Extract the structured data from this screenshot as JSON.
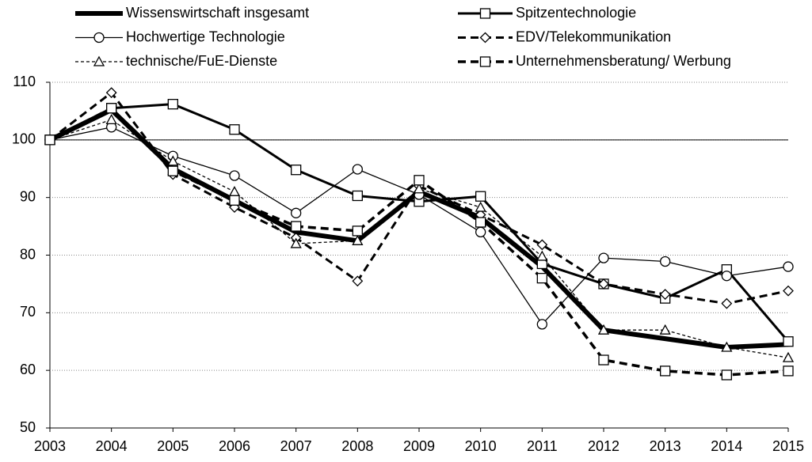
{
  "chart_data": {
    "type": "line",
    "x": [
      2003,
      2004,
      2005,
      2006,
      2007,
      2008,
      2009,
      2010,
      2011,
      2012,
      2013,
      2014,
      2015
    ],
    "xlim": [
      2003,
      2015
    ],
    "xticks": [
      2003,
      2004,
      2005,
      2006,
      2007,
      2008,
      2009,
      2010,
      2011,
      2012,
      2013,
      2014,
      2015
    ],
    "ylim": [
      50,
      110
    ],
    "yticks": [
      50,
      60,
      70,
      80,
      90,
      100,
      110
    ],
    "grid": true,
    "reference_line": 100,
    "series": [
      {
        "name": "Wissenswirtschaft insgesamt",
        "color": "#000000",
        "width": 6,
        "dash": "none",
        "marker": "none",
        "values": [
          100,
          105.2,
          95,
          89.5,
          84,
          82.5,
          91,
          86.5,
          78,
          67,
          65.5,
          64,
          64.5
        ]
      },
      {
        "name": "Spitzentechnologie",
        "color": "#000000",
        "width": 3,
        "dash": "none",
        "marker": "square",
        "values": [
          100,
          105.5,
          106.2,
          101.8,
          94.8,
          90.3,
          89.3,
          90.2,
          78.5,
          75,
          72.5,
          77.5,
          65
        ]
      },
      {
        "name": "Hochwertige Technologie",
        "color": "#000000",
        "width": 1.3,
        "dash": "none",
        "marker": "circle",
        "values": [
          100,
          102.2,
          97.2,
          93.8,
          87.3,
          94.9,
          90.5,
          84,
          68,
          79.5,
          78.9,
          76.4,
          78
        ]
      },
      {
        "name": "EDV/Telekommunikation",
        "color": "#000000",
        "width": 3,
        "dash": "10 6",
        "marker": "diamond",
        "values": [
          100,
          108.2,
          94,
          88.3,
          83,
          75.5,
          92,
          87,
          81.8,
          75,
          73.2,
          71.6,
          73.8
        ]
      },
      {
        "name": "technische/FuE-Dienste",
        "color": "#000000",
        "width": 1.3,
        "dash": "4 3",
        "marker": "triangle",
        "values": [
          100,
          103.5,
          96.3,
          91,
          82,
          82.5,
          91.5,
          88.3,
          79.8,
          67,
          67,
          64,
          62.2
        ]
      },
      {
        "name": "Unternehmensberatung/ Werbung",
        "color": "#000000",
        "width": 3.5,
        "dash": "10 6",
        "marker": "square",
        "values": [
          100,
          105.5,
          94.6,
          89.5,
          85,
          84.2,
          93,
          85.7,
          76,
          61.8,
          59.9,
          59.2,
          59.9
        ]
      }
    ]
  }
}
